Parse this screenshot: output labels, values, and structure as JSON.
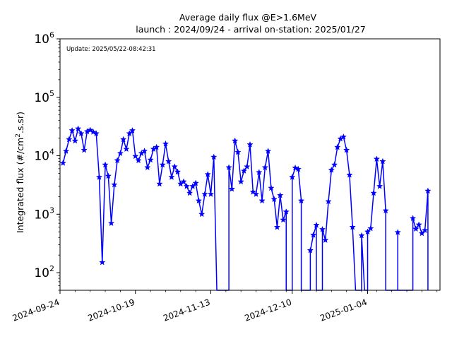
{
  "chart_data": {
    "type": "line",
    "title": "Average daily flux @E>1.6MeV",
    "subtitle": "launch : 2024/09/24 - arrival on-station: 2025/01/27",
    "annotation": "Update: 2025/05/22-08:42:31",
    "ylabel_main": "Integrated flux (#/cm",
    "ylabel_sup": "2",
    "ylabel_tail": ".s.sr)",
    "y_scale": "log",
    "ylim": [
      50,
      1000000
    ],
    "xlim": [
      "2024-09-24",
      "2025-01-28"
    ],
    "y_ticks": [
      {
        "value": 100,
        "base": "10",
        "exp": "2"
      },
      {
        "value": 1000,
        "base": "10",
        "exp": "3"
      },
      {
        "value": 10000,
        "base": "10",
        "exp": "4"
      },
      {
        "value": 100000,
        "base": "10",
        "exp": "5"
      },
      {
        "value": 1000000,
        "base": "10",
        "exp": "6"
      }
    ],
    "x_ticks": [
      "2024-09-24",
      "2024-10-19",
      "2024-11-13",
      "2024-12-10",
      "2025-01-04"
    ],
    "color": "#0000ff",
    "grid": false,
    "series": [
      {
        "marker": "star",
        "points": [
          [
            "2024-09-25",
            7500
          ],
          [
            "2024-09-26",
            12000
          ],
          [
            "2024-09-27",
            19000
          ],
          [
            "2024-09-28",
            27000
          ],
          [
            "2024-09-29",
            18000
          ],
          [
            "2024-09-30",
            29000
          ],
          [
            "2024-10-01",
            24000
          ],
          [
            "2024-10-02",
            12500
          ],
          [
            "2024-10-03",
            26000
          ],
          [
            "2024-10-04",
            27500
          ],
          [
            "2024-10-05",
            25500
          ],
          [
            "2024-10-06",
            24000
          ],
          [
            "2024-10-07",
            4300
          ],
          [
            "2024-10-08",
            150
          ],
          [
            "2024-10-09",
            7000
          ],
          [
            "2024-10-10",
            4500
          ],
          [
            "2024-10-11",
            700
          ],
          [
            "2024-10-12",
            3200
          ],
          [
            "2024-10-13",
            8300
          ],
          [
            "2024-10-14",
            11000
          ],
          [
            "2024-10-15",
            19000
          ],
          [
            "2024-10-16",
            13000
          ],
          [
            "2024-10-17",
            24000
          ],
          [
            "2024-10-18",
            27000
          ],
          [
            "2024-10-19",
            9800
          ],
          [
            "2024-10-20",
            8300
          ],
          [
            "2024-10-21",
            11000
          ],
          [
            "2024-10-22",
            12000
          ],
          [
            "2024-10-23",
            6300
          ],
          [
            "2024-10-24",
            8500
          ],
          [
            "2024-10-25",
            13000
          ],
          [
            "2024-10-26",
            14000
          ],
          [
            "2024-10-27",
            3300
          ],
          [
            "2024-10-28",
            7000
          ],
          [
            "2024-10-29",
            16000
          ],
          [
            "2024-10-30",
            8000
          ],
          [
            "2024-10-31",
            4300
          ],
          [
            "2024-11-01",
            6500
          ],
          [
            "2024-11-02",
            5300
          ],
          [
            "2024-11-03",
            3300
          ],
          [
            "2024-11-04",
            3600
          ],
          [
            "2024-11-05",
            3000
          ],
          [
            "2024-11-06",
            2300
          ],
          [
            "2024-11-07",
            3000
          ],
          [
            "2024-11-08",
            3400
          ],
          [
            "2024-11-09",
            1700
          ],
          [
            "2024-11-10",
            1000
          ],
          [
            "2024-11-11",
            2200
          ],
          [
            "2024-11-12",
            4800
          ],
          [
            "2024-11-13",
            2200
          ],
          [
            "2024-11-14",
            9500
          ],
          [
            "2024-11-15",
            0
          ],
          [
            "2024-11-19",
            0
          ],
          [
            "2024-11-19",
            6300
          ],
          [
            "2024-11-20",
            2700
          ],
          [
            "2024-11-21",
            18000
          ],
          [
            "2024-11-22",
            11500
          ],
          [
            "2024-11-23",
            3600
          ],
          [
            "2024-11-24",
            5500
          ],
          [
            "2024-11-25",
            6500
          ],
          [
            "2024-11-26",
            15500
          ],
          [
            "2024-11-27",
            2400
          ],
          [
            "2024-11-28",
            2200
          ],
          [
            "2024-11-29",
            5200
          ],
          [
            "2024-11-30",
            1700
          ],
          [
            "2024-12-01",
            6300
          ],
          [
            "2024-12-02",
            12000
          ],
          [
            "2024-12-03",
            2800
          ],
          [
            "2024-12-04",
            1800
          ],
          [
            "2024-12-05",
            600
          ],
          [
            "2024-12-06",
            2100
          ],
          [
            "2024-12-07",
            800
          ],
          [
            "2024-12-08",
            1100
          ],
          [
            "2024-12-08",
            0
          ],
          [
            "2024-12-10",
            0
          ],
          [
            "2024-12-10",
            4300
          ],
          [
            "2024-12-11",
            6200
          ],
          [
            "2024-12-12",
            5900
          ],
          [
            "2024-12-13",
            1700
          ],
          [
            "2024-12-13",
            0
          ],
          [
            "2024-12-16",
            0
          ],
          [
            "2024-12-16",
            240
          ],
          [
            "2024-12-17",
            440
          ],
          [
            "2024-12-18",
            650
          ],
          [
            "2024-12-18",
            0
          ],
          [
            "2024-12-20",
            0
          ],
          [
            "2024-12-20",
            550
          ],
          [
            "2024-12-21",
            360
          ],
          [
            "2024-12-22",
            1650
          ],
          [
            "2024-12-23",
            5700
          ],
          [
            "2024-12-24",
            7000
          ],
          [
            "2024-12-25",
            14000
          ],
          [
            "2024-12-26",
            19500
          ],
          [
            "2024-12-27",
            21000
          ],
          [
            "2024-12-28",
            12500
          ],
          [
            "2024-12-29",
            4700
          ],
          [
            "2024-12-30",
            600
          ],
          [
            "2024-12-31",
            0
          ],
          [
            "2025-01-02",
            0
          ],
          [
            "2025-01-02",
            430
          ],
          [
            "2025-01-03",
            0
          ],
          [
            "2025-01-04",
            0
          ],
          [
            "2025-01-04",
            500
          ],
          [
            "2025-01-05",
            570
          ],
          [
            "2025-01-06",
            2300
          ],
          [
            "2025-01-07",
            8800
          ],
          [
            "2025-01-08",
            3000
          ],
          [
            "2025-01-09",
            8000
          ],
          [
            "2025-01-10",
            1150
          ],
          [
            "2025-01-10",
            0
          ],
          [
            "2025-01-14",
            0
          ],
          [
            "2025-01-14",
            490
          ],
          [
            "2025-01-14",
            0
          ],
          [
            "2025-01-19",
            0
          ],
          [
            "2025-01-19",
            850
          ],
          [
            "2025-01-20",
            560
          ],
          [
            "2025-01-21",
            660
          ],
          [
            "2025-01-22",
            470
          ],
          [
            "2025-01-23",
            530
          ],
          [
            "2025-01-24",
            2500
          ],
          [
            "2025-01-24",
            0
          ]
        ]
      }
    ]
  }
}
